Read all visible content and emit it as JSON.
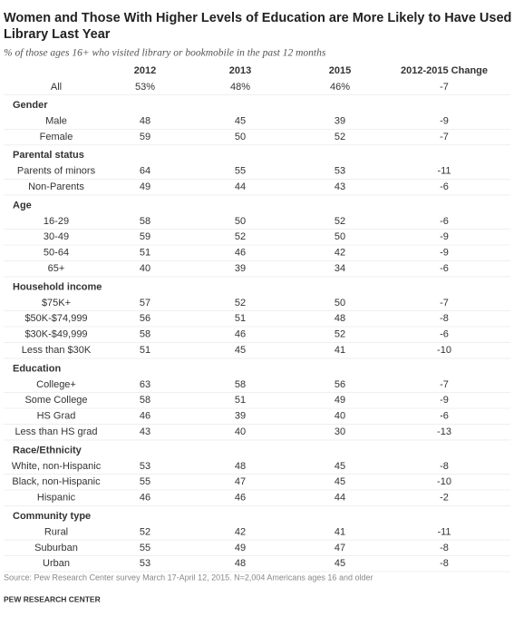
{
  "header": {
    "title": [
      "Women and Those With Higher Levels of Education are More Likely to Have Used a",
      "Library Last Year"
    ],
    "subtitle": "% of those ages 16+ who visited library or bookmobile in the past 12 months"
  },
  "table": {
    "columns": [
      "2012",
      "2013",
      "2015",
      "2012-2015 Change"
    ],
    "total": {
      "label": "All",
      "values": [
        "53%",
        "48%",
        "46%",
        -7
      ]
    },
    "groups": [
      {
        "name": "Gender",
        "rows": [
          {
            "label": "Male",
            "values": [
              48,
              45,
              39,
              -9
            ]
          },
          {
            "label": "Female",
            "values": [
              59,
              50,
              52,
              -7
            ]
          }
        ]
      },
      {
        "name": "Parental status",
        "rows": [
          {
            "label": "Parents of minors",
            "values": [
              64,
              55,
              53,
              -11
            ]
          },
          {
            "label": "Non-Parents",
            "values": [
              49,
              44,
              43,
              -6
            ]
          }
        ]
      },
      {
        "name": "Age",
        "rows": [
          {
            "label": "16-29",
            "values": [
              58,
              50,
              52,
              -6
            ]
          },
          {
            "label": "30-49",
            "values": [
              59,
              52,
              50,
              -9
            ]
          },
          {
            "label": "50-64",
            "values": [
              51,
              46,
              42,
              -9
            ]
          },
          {
            "label": "65+",
            "values": [
              40,
              39,
              34,
              -6
            ]
          }
        ]
      },
      {
        "name": "Household income",
        "rows": [
          {
            "label": "$75K+",
            "values": [
              57,
              52,
              50,
              -7
            ]
          },
          {
            "label": "$50K-$74,999",
            "values": [
              56,
              51,
              48,
              -8
            ]
          },
          {
            "label": "$30K-$49,999",
            "values": [
              58,
              46,
              52,
              -6
            ]
          },
          {
            "label": "Less than $30K",
            "values": [
              51,
              45,
              41,
              -10
            ]
          }
        ]
      },
      {
        "name": "Education",
        "rows": [
          {
            "label": "College+",
            "values": [
              63,
              58,
              56,
              -7
            ]
          },
          {
            "label": "Some College",
            "values": [
              58,
              51,
              49,
              -9
            ]
          },
          {
            "label": "HS Grad",
            "values": [
              46,
              39,
              40,
              -6
            ]
          },
          {
            "label": "Less than HS grad",
            "values": [
              43,
              40,
              30,
              -13
            ]
          }
        ]
      },
      {
        "name": "Race/Ethnicity",
        "rows": [
          {
            "label": "White, non-Hispanic",
            "values": [
              53,
              48,
              45,
              -8
            ]
          },
          {
            "label": "Black, non-Hispanic",
            "values": [
              55,
              47,
              45,
              -10
            ]
          },
          {
            "label": "Hispanic",
            "values": [
              46,
              46,
              44,
              -2
            ]
          }
        ]
      },
      {
        "name": "Community type",
        "rows": [
          {
            "label": "Rural",
            "values": [
              52,
              42,
              41,
              -11
            ]
          },
          {
            "label": "Suburban",
            "values": [
              55,
              49,
              47,
              -8
            ]
          },
          {
            "label": "Urban",
            "values": [
              53,
              48,
              45,
              -8
            ]
          }
        ]
      }
    ]
  },
  "source": "Source: Pew Research Center survey March 17-April 12, 2015. N=2,004 Americans ages 16 and older",
  "footer": "PEW RESEARCH CENTER"
}
